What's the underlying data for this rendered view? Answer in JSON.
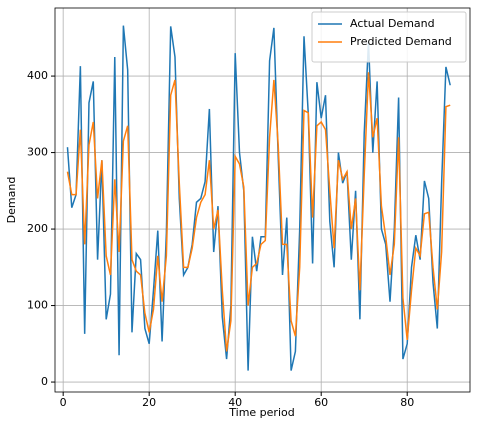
{
  "chart_data": {
    "type": "line",
    "xlabel": "Time period",
    "ylabel": "Demand",
    "x": [
      1,
      2,
      3,
      4,
      5,
      6,
      7,
      8,
      9,
      10,
      11,
      12,
      13,
      14,
      15,
      16,
      17,
      18,
      19,
      20,
      21,
      22,
      23,
      24,
      25,
      26,
      27,
      28,
      29,
      30,
      31,
      32,
      33,
      34,
      35,
      36,
      37,
      38,
      39,
      40,
      41,
      42,
      43,
      44,
      45,
      46,
      47,
      48,
      49,
      50,
      51,
      52,
      53,
      54,
      55,
      56,
      57,
      58,
      59,
      60,
      61,
      62,
      63,
      64,
      65,
      66,
      67,
      68,
      69,
      70,
      71,
      72,
      73,
      74,
      75,
      76,
      77,
      78,
      79,
      80,
      81,
      82,
      83,
      84,
      85,
      86,
      87,
      88,
      89,
      90
    ],
    "series": [
      {
        "name": "Actual Demand",
        "color": "#1f77b4",
        "values": [
          307,
          228,
          245,
          413,
          63,
          365,
          393,
          160,
          290,
          82,
          115,
          425,
          35,
          466,
          408,
          65,
          168,
          160,
          70,
          50,
          120,
          198,
          53,
          195,
          465,
          425,
          240,
          140,
          150,
          180,
          235,
          240,
          262,
          357,
          170,
          230,
          85,
          30,
          100,
          430,
          300,
          250,
          15,
          190,
          145,
          190,
          190,
          420,
          463,
          295,
          140,
          215,
          15,
          40,
          200,
          452,
          350,
          155,
          392,
          345,
          375,
          210,
          150,
          300,
          260,
          275,
          160,
          250,
          82,
          325,
          445,
          300,
          393,
          200,
          180,
          105,
          200,
          372,
          30,
          50,
          150,
          192,
          160,
          263,
          240,
          130,
          70,
          260,
          412,
          388
        ]
      },
      {
        "name": "Predicted Demand",
        "color": "#ff7f0e",
        "values": [
          275,
          245,
          245,
          330,
          180,
          310,
          340,
          240,
          290,
          165,
          140,
          265,
          170,
          315,
          335,
          160,
          145,
          140,
          90,
          65,
          95,
          165,
          105,
          165,
          375,
          395,
          260,
          150,
          150,
          175,
          215,
          235,
          245,
          290,
          200,
          225,
          120,
          40,
          80,
          295,
          285,
          255,
          100,
          150,
          155,
          180,
          185,
          320,
          395,
          310,
          180,
          180,
          80,
          60,
          150,
          355,
          352,
          215,
          335,
          340,
          330,
          250,
          175,
          290,
          265,
          275,
          200,
          240,
          120,
          270,
          405,
          320,
          345,
          230,
          190,
          140,
          180,
          320,
          110,
          55,
          120,
          175,
          165,
          220,
          222,
          150,
          95,
          170,
          360,
          362
        ]
      }
    ],
    "xlim": [
      -1.9,
      94.6
    ],
    "xticks": [
      0,
      20,
      40,
      60,
      80
    ],
    "ylim": [
      -13,
      489
    ],
    "yticks": [
      0,
      100,
      200,
      300,
      400
    ],
    "grid": true,
    "legend": "upper right"
  }
}
